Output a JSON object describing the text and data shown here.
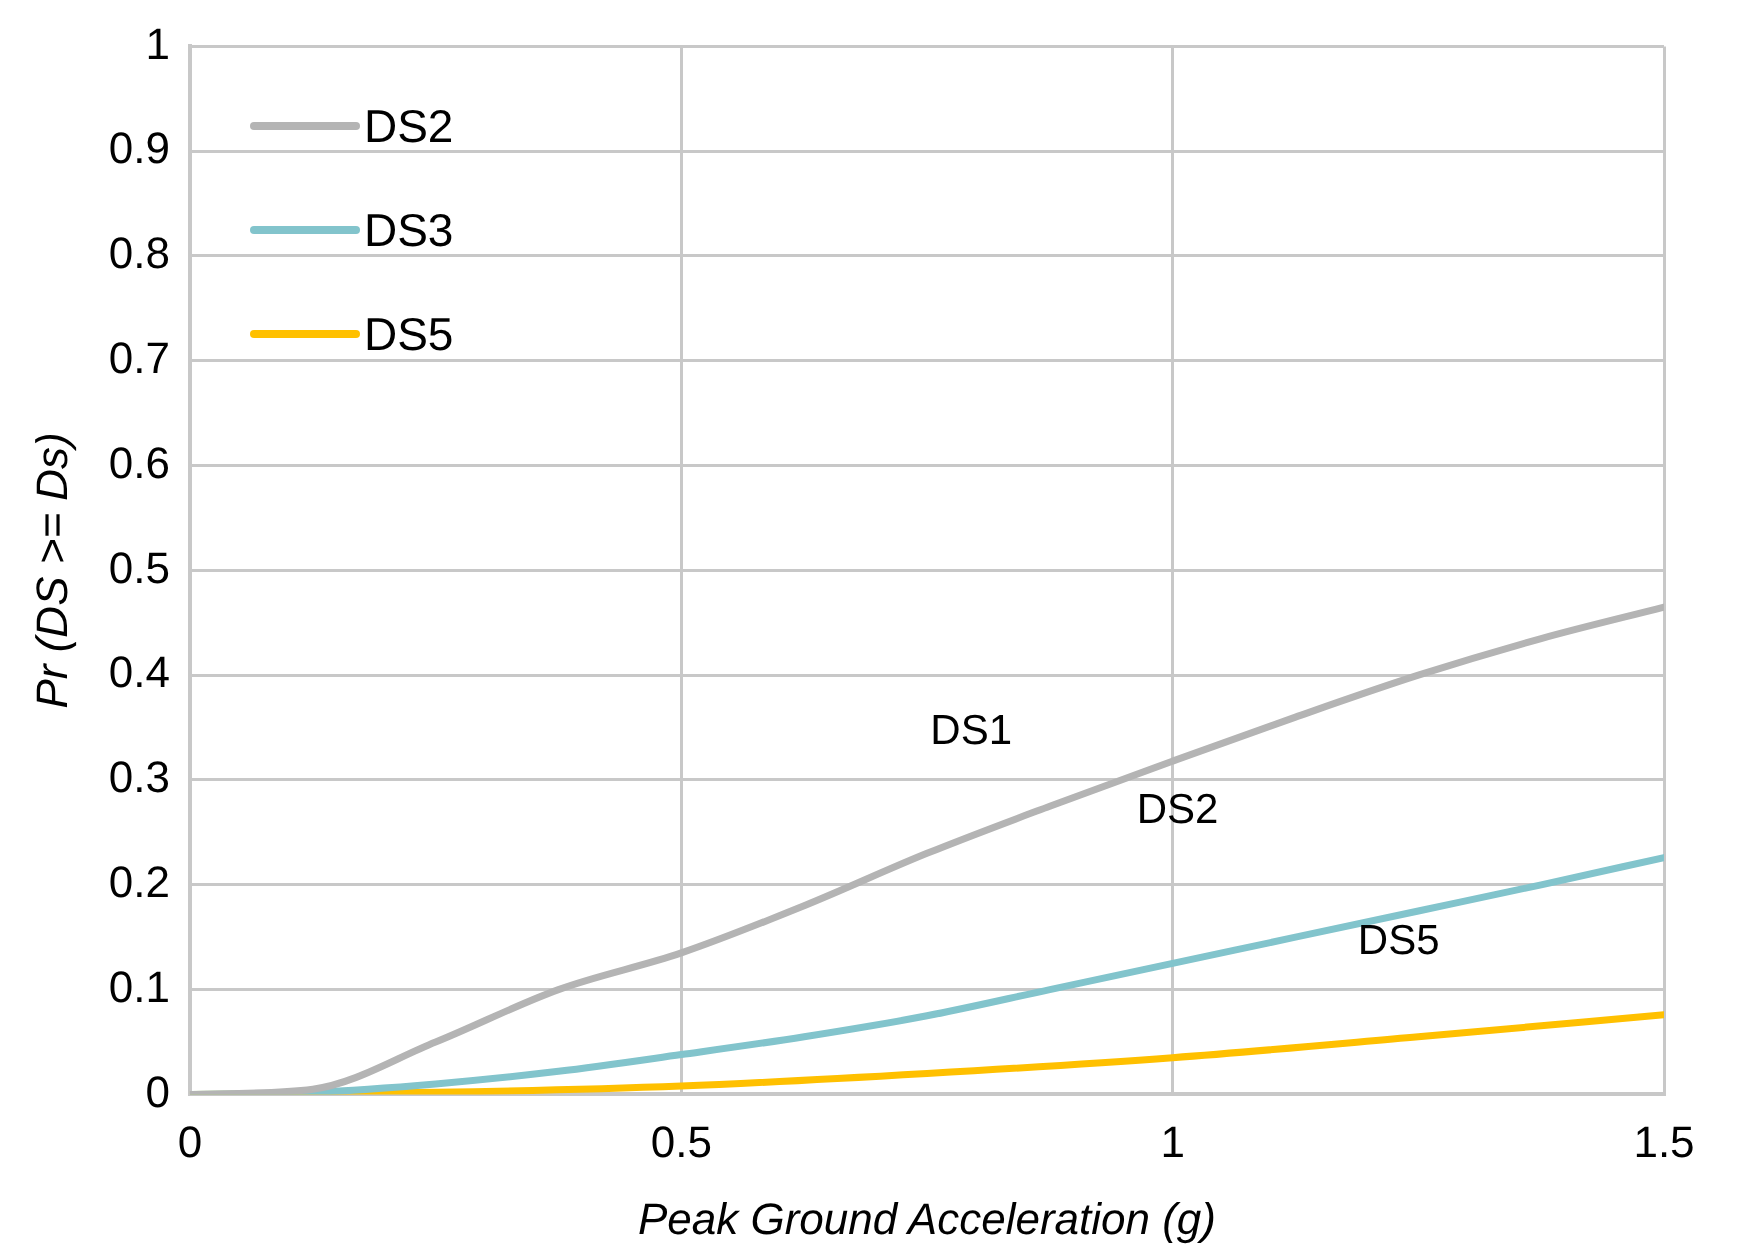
{
  "chart_data": {
    "type": "line",
    "xlabel": "Peak Ground Acceleration (g)",
    "ylabel": "Pr (DS >= Ds)",
    "xlim": [
      0,
      1.5
    ],
    "xticks": [
      0,
      0.5,
      1,
      1.5
    ],
    "ylim": [
      0,
      1
    ],
    "yticks": [
      0,
      0.1,
      0.2,
      0.3,
      0.4,
      0.5,
      0.6,
      0.7,
      0.8,
      0.9,
      1
    ],
    "grid": true,
    "legend": "top left",
    "marker": "none",
    "line_style": "solid",
    "series": [
      {
        "name": "DS2",
        "color": "#b4b4b4",
        "x": [
          0,
          0.125,
          0.25,
          0.375,
          0.5,
          0.625,
          0.75,
          0.875,
          1,
          1.125,
          1.25,
          1.375,
          1.5
        ],
        "values": [
          0,
          0.005,
          0.05,
          0.1,
          0.135,
          0.18,
          0.23,
          0.275,
          0.318,
          0.36,
          0.4,
          0.435,
          0.465
        ]
      },
      {
        "name": "DS3",
        "color": "#82c4cc",
        "x": [
          0,
          0.125,
          0.25,
          0.375,
          0.5,
          0.625,
          0.75,
          0.875,
          1,
          1.125,
          1.25,
          1.375,
          1.5
        ],
        "values": [
          0,
          0.002,
          0.01,
          0.022,
          0.038,
          0.055,
          0.075,
          0.1,
          0.125,
          0.15,
          0.175,
          0.2,
          0.226
        ]
      },
      {
        "name": "DS5",
        "color": "#ffc000",
        "x": [
          0,
          0.25,
          0.5,
          0.75,
          1,
          1.25,
          1.5
        ],
        "values": [
          0,
          0.002,
          0.008,
          0.02,
          0.035,
          0.055,
          0.076
        ]
      }
    ],
    "annotations": [
      "DS1",
      "DS2",
      "DS5"
    ]
  }
}
